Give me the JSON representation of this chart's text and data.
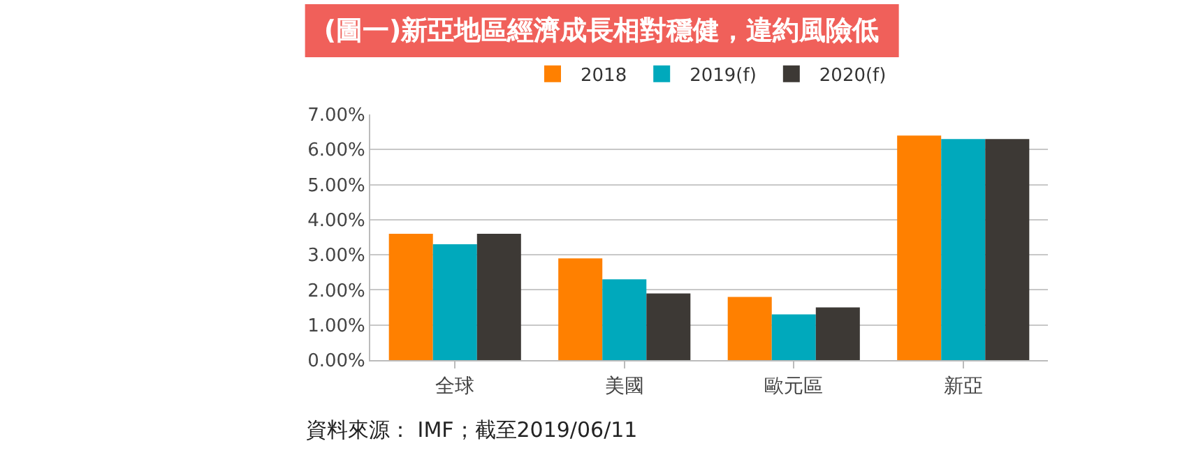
{
  "chart_data": {
    "type": "bar",
    "title": "(圖一)新亞地區經濟成長相對穩健，違約風險低",
    "categories": [
      "全球",
      "美國",
      "歐元區",
      "新亞"
    ],
    "series": [
      {
        "name": "2018",
        "color": "#ff8000",
        "values": [
          3.6,
          2.9,
          1.8,
          6.4
        ]
      },
      {
        "name": "2019(f)",
        "color": "#00a9bc",
        "values": [
          3.3,
          2.3,
          1.3,
          6.3
        ]
      },
      {
        "name": "2020(f)",
        "color": "#3d3935",
        "values": [
          3.6,
          1.9,
          1.5,
          6.3
        ]
      }
    ],
    "ylim": [
      0,
      7
    ],
    "yticks": [
      {
        "value": 0,
        "label": "0.00%"
      },
      {
        "value": 1,
        "label": "1.00%"
      },
      {
        "value": 2,
        "label": "2.00%"
      },
      {
        "value": 3,
        "label": "3.00%"
      },
      {
        "value": 4,
        "label": "4.00%"
      },
      {
        "value": 5,
        "label": "5.00%"
      },
      {
        "value": 6,
        "label": "6.00%"
      },
      {
        "value": 7,
        "label": "7.00%"
      }
    ],
    "grid": "y",
    "legend": "top",
    "annotations": [
      "資料來源： IMF；截至2019/06/11"
    ]
  }
}
